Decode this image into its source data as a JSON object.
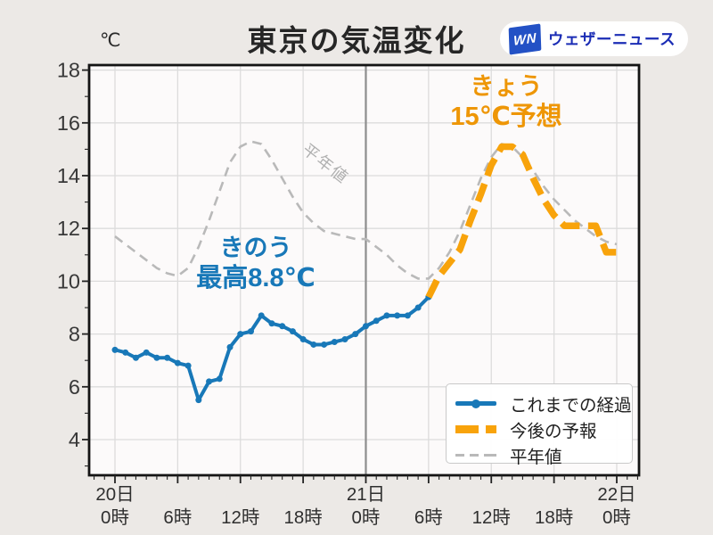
{
  "header": {
    "unit_label": "℃",
    "title": "東京の気温変化",
    "logo_mark": "WN",
    "logo_text": "ウェザーニュース"
  },
  "annotations": {
    "yesterday_line1": "きのう",
    "yesterday_line2": "最高8.8℃",
    "today_line1": "きょう",
    "today_line2": "15℃予想"
  },
  "legend": {
    "items": [
      {
        "label": "これまでの経過",
        "style": "solid-line-with-dot",
        "color": "#1878b8"
      },
      {
        "label": "今後の予報",
        "style": "thick-dashed",
        "color": "#f8a30b"
      },
      {
        "label": "平年値",
        "style": "thin-dashed",
        "color": "#b9b9b9"
      }
    ]
  },
  "colors": {
    "observed": "#1878b8",
    "forecast": "#f8a30b",
    "normal": "#b9b9b9",
    "annotation_yesterday": "#1878b8",
    "annotation_today": "#ee9606",
    "grid": "#dcdcdc",
    "day_divider": "#8d8d8d",
    "frame": "#141414",
    "tick_label": "#383838",
    "plot_background": "#fcfafa"
  },
  "chart_data": {
    "type": "line",
    "title": "東京の気温変化",
    "y_unit": "℃",
    "ylim": [
      4,
      18
    ],
    "xlim_hours": [
      0,
      48
    ],
    "grid": true,
    "legend_position": "lower right",
    "y_ticks": [
      18,
      16,
      14,
      12,
      10,
      8,
      6,
      4
    ],
    "x_ticks": [
      {
        "hour": 0,
        "day_label": "20日",
        "hour_label": "0時"
      },
      {
        "hour": 6,
        "hour_label": "6時"
      },
      {
        "hour": 12,
        "hour_label": "12時"
      },
      {
        "hour": 18,
        "hour_label": "18時"
      },
      {
        "hour": 24,
        "day_label": "21日",
        "hour_label": "0時",
        "divider": true
      },
      {
        "hour": 30,
        "hour_label": "6時"
      },
      {
        "hour": 36,
        "hour_label": "12時"
      },
      {
        "hour": 42,
        "hour_label": "18時"
      },
      {
        "hour": 48,
        "day_label": "22日",
        "hour_label": "0時"
      }
    ],
    "series": [
      {
        "name": "これまでの経過",
        "role": "observed",
        "start_hour": 0,
        "values": [
          7.4,
          7.3,
          7.1,
          7.3,
          7.1,
          7.1,
          6.9,
          6.8,
          5.5,
          6.2,
          6.3,
          7.5,
          8.0,
          8.1,
          8.7,
          8.4,
          8.3,
          8.1,
          7.8,
          7.6,
          7.6,
          7.7,
          7.8,
          8.0,
          8.3,
          8.5,
          8.7,
          8.7,
          8.7,
          9.0,
          9.4
        ]
      },
      {
        "name": "今後の予報",
        "role": "forecast",
        "start_hour": 30,
        "values": [
          9.4,
          10.2,
          10.7,
          11.2,
          12.3,
          13.3,
          14.4,
          15.1,
          15.1,
          14.8,
          13.9,
          13.1,
          12.5,
          12.1,
          12.1,
          12.1,
          12.1,
          11.1,
          11.1
        ]
      },
      {
        "name": "平年値",
        "role": "normal",
        "start_hour": 0,
        "values": [
          11.7,
          11.4,
          11.1,
          10.8,
          10.5,
          10.3,
          10.2,
          10.5,
          11.3,
          12.3,
          13.4,
          14.5,
          15.1,
          15.3,
          15.2,
          14.6,
          13.9,
          13.2,
          12.6,
          12.2,
          11.9,
          11.8,
          11.7,
          11.6,
          11.6,
          11.3,
          11.0,
          10.6,
          10.3,
          10.1,
          10.1,
          10.5,
          11.1,
          11.9,
          12.9,
          13.9,
          14.7,
          15.2,
          15.1,
          14.7,
          14.2,
          13.6,
          13.1,
          12.7,
          12.3,
          12.0,
          11.7,
          11.5,
          11.4
        ]
      }
    ],
    "normal_line_label": "平年値"
  }
}
